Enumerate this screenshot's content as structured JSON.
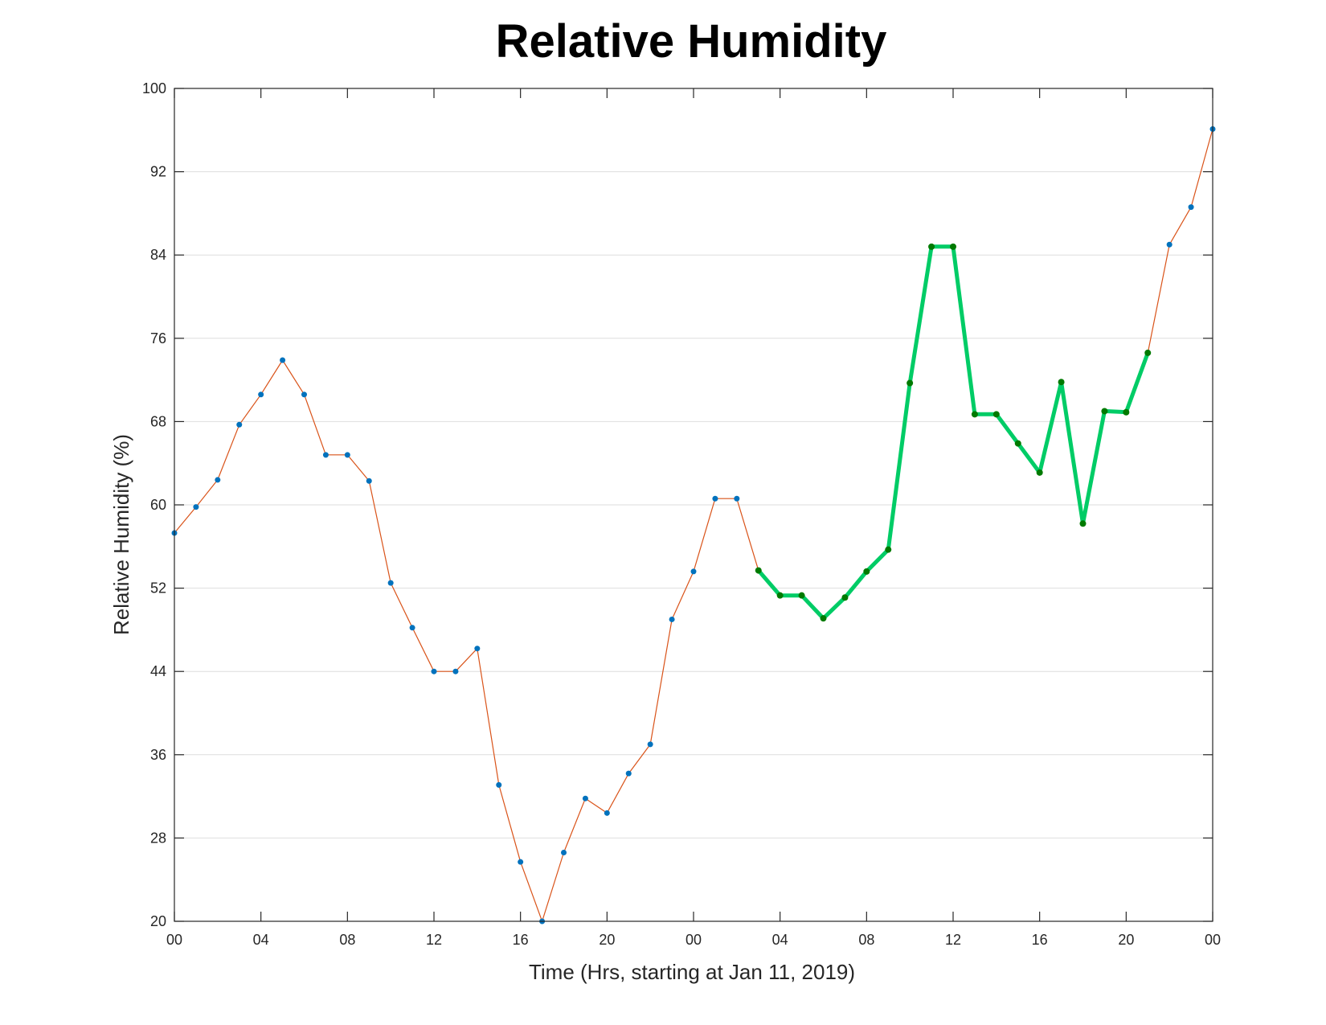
{
  "chart_data": {
    "type": "line",
    "title": "Relative Humidity",
    "xlabel": "Time (Hrs, starting at Jan 11, 2019)",
    "ylabel": "Relative Humidity (%)",
    "ylim": [
      20,
      100
    ],
    "xlim": [
      0,
      48
    ],
    "x_unit": "hours",
    "yticks": [
      20,
      28,
      36,
      44,
      52,
      60,
      68,
      76,
      84,
      92,
      100
    ],
    "xticks": [
      0,
      4,
      8,
      12,
      16,
      20,
      24,
      28,
      32,
      36,
      40,
      44,
      48
    ],
    "xtick_labels": [
      "00",
      "04",
      "08",
      "12",
      "16",
      "20",
      "00",
      "04",
      "08",
      "12",
      "16",
      "20",
      "00"
    ],
    "grid": "horizontal",
    "series": [
      {
        "color": "#d95319",
        "marker_color": "#0072bd",
        "x": [
          0,
          1,
          2,
          3,
          4,
          5,
          6,
          7,
          8,
          9,
          10,
          11,
          12,
          13,
          14,
          15,
          16,
          17,
          18,
          19,
          20,
          21,
          22,
          23,
          24,
          25,
          26,
          27,
          28,
          29,
          30,
          31,
          32,
          33,
          34,
          35,
          36,
          37,
          38,
          39,
          40,
          41,
          42,
          43,
          44,
          45,
          46,
          47,
          48
        ],
        "y": [
          57.3,
          59.8,
          62.4,
          67.7,
          70.6,
          73.9,
          70.6,
          64.8,
          64.8,
          62.3,
          52.5,
          48.2,
          44.0,
          44.0,
          46.2,
          33.1,
          25.7,
          20.0,
          26.6,
          31.8,
          30.4,
          34.2,
          37.0,
          49.0,
          53.6,
          60.6,
          60.6,
          53.7,
          51.3,
          51.3,
          49.1,
          51.1,
          53.6,
          55.7,
          71.7,
          84.8,
          84.8,
          68.7,
          68.7,
          65.9,
          63.1,
          71.8,
          58.2,
          69.0,
          68.9,
          74.6,
          85.0,
          88.6,
          96.1
        ]
      },
      {
        "color": "#00cc66",
        "marker_color": "#007a00",
        "x": [
          27,
          28,
          29,
          30,
          31,
          32,
          33,
          34,
          35,
          36,
          37,
          38,
          39,
          40,
          41,
          42,
          43,
          44,
          45
        ],
        "y": [
          53.7,
          51.3,
          51.3,
          49.1,
          51.1,
          53.6,
          55.7,
          71.7,
          84.8,
          84.8,
          68.7,
          68.7,
          65.9,
          63.1,
          71.8,
          58.2,
          69.0,
          68.9,
          74.6
        ]
      }
    ]
  },
  "colors": {
    "axis": "#262626",
    "grid": "#dedede",
    "background": "#ffffff"
  }
}
